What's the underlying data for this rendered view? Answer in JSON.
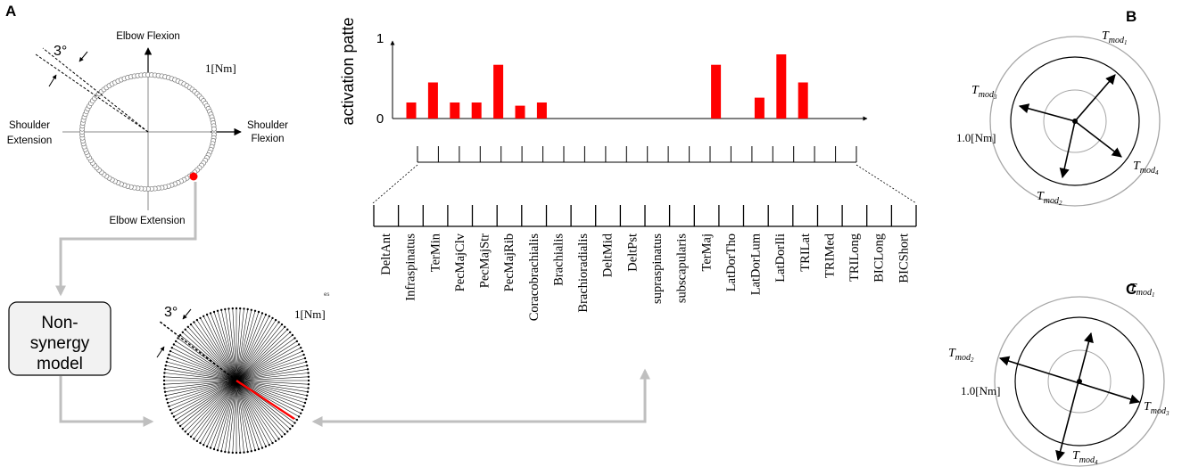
{
  "panels": {
    "a": "A",
    "b": "B",
    "c": "C"
  },
  "circle_top": {
    "angle": "3°",
    "torque": "1[Nm]",
    "up": "Elbow Flexion",
    "right": "Shoulder",
    "right2": "Flexion",
    "left": "Shoulder",
    "left2": "Extension",
    "down": "Elbow Extension"
  },
  "model_box": {
    "line1": "Non-",
    "line2": "synergy",
    "line3": "model"
  },
  "fan": {
    "angle": "3°",
    "torque": "1[Nm]",
    "stray": "es",
    "directions": 120
  },
  "chart_data": {
    "type": "bar",
    "ylabel": "activation patte",
    "ylim": [
      0,
      1
    ],
    "y_ticks": [
      "0",
      "1"
    ],
    "categories": [
      "DeltAnt",
      "Infraspinatus",
      "TerMin",
      "PecMajClv",
      "PecMajStr",
      "PecMajRib",
      "Coracobrachialis",
      "Brachialis",
      "Brachioradialis",
      "DeltMid",
      "DeltPst",
      "supraspinatus",
      "subscapularis",
      "TerMaj",
      "LatDorTho",
      "LatDorLum",
      "LatDorIli",
      "TRILat",
      "TRIMed",
      "TRILong",
      "BICLong",
      "BICShort"
    ],
    "values": [
      0.2,
      0.45,
      0.2,
      0.2,
      0.67,
      0.16,
      0.2,
      0,
      0,
      0,
      0,
      0,
      0,
      0,
      0.67,
      0,
      0.26,
      0.8,
      0.45,
      0,
      0,
      0
    ],
    "bar_color": "#ff0000"
  },
  "panel_b": {
    "labels": [
      {
        "base": "T",
        "sub": "mod",
        "idx": "1"
      },
      {
        "base": "T",
        "sub": "mod",
        "idx": "3"
      },
      {
        "base": "T",
        "sub": "mod",
        "idx": "4"
      },
      {
        "base": "T",
        "sub": "mod",
        "idx": "2"
      }
    ],
    "scale": "1.0[Nm]"
  },
  "panel_c": {
    "labels": [
      {
        "base": "T",
        "sub": "mod",
        "idx": "1"
      },
      {
        "base": "T",
        "sub": "mod",
        "idx": "2"
      },
      {
        "base": "T",
        "sub": "mod",
        "idx": "3"
      },
      {
        "base": "T",
        "sub": "mod",
        "idx": "4"
      }
    ],
    "scale": "1.0[Nm]"
  },
  "colors": {
    "bar": "#ff0000",
    "arrow_gray": "#bfbfbf",
    "box_fill": "#f2f2f2",
    "ring_gray": "#a6a6a6"
  }
}
